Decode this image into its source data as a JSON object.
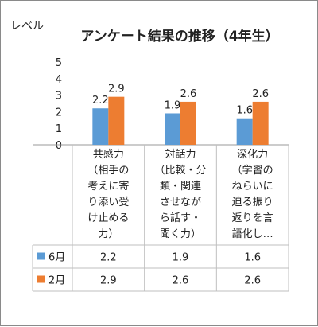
{
  "chart_data": {
    "type": "bar",
    "title": "アンケート結果の推移（4年生）",
    "ylabel": "レベル",
    "ylim": [
      0,
      5
    ],
    "yticks": [
      0,
      1,
      2,
      3,
      4,
      5
    ],
    "grid": false,
    "legend": "table-left",
    "categories": [
      [
        "共感力",
        "（相手の",
        "考えに寄",
        "り添い受",
        "け止める",
        "力）"
      ],
      [
        "対話力",
        "（比較・分",
        "類・関連",
        "させなが",
        "ら話す・",
        "聞く力）"
      ],
      [
        "深化力",
        "（学習の",
        "ねらいに",
        "迫る振り",
        "返りを言",
        "語化し…"
      ]
    ],
    "series": [
      {
        "name": "6月",
        "values": [
          2.2,
          1.9,
          1.6
        ],
        "color": "#5b9bd5"
      },
      {
        "name": "2月",
        "values": [
          2.9,
          2.6,
          2.6
        ],
        "color": "#ed7d31"
      }
    ]
  }
}
